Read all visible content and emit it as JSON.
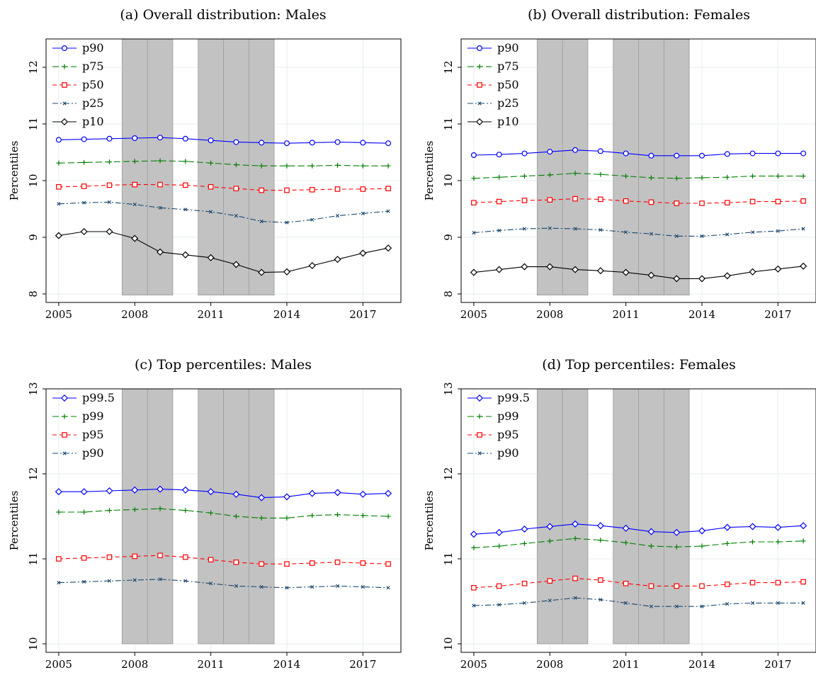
{
  "chart_data": [
    {
      "type": "line",
      "title": "(a) Overall distribution: Males",
      "ylabel": "Percentiles",
      "xlabel": "",
      "x": [
        2005,
        2006,
        2007,
        2008,
        2009,
        2010,
        2011,
        2012,
        2013,
        2014,
        2015,
        2016,
        2017,
        2018
      ],
      "xticks": [
        "2005",
        "2008",
        "2011",
        "2014",
        "2017"
      ],
      "yticks": [
        "8",
        "9",
        "10",
        "11",
        "12"
      ],
      "xlim": [
        2004.5,
        2018.5
      ],
      "ylim": [
        7.85,
        12.5
      ],
      "grid": true,
      "legend_position": "top-left",
      "shaded_periods": [
        [
          2007.5,
          2009.5
        ],
        [
          2010.5,
          2013.5
        ]
      ],
      "series": [
        {
          "name": "p90",
          "color": "#0000ff",
          "marker": "circle",
          "dash": "solid",
          "values": [
            10.72,
            10.73,
            10.74,
            10.75,
            10.76,
            10.74,
            10.71,
            10.68,
            10.67,
            10.66,
            10.67,
            10.68,
            10.67,
            10.66
          ]
        },
        {
          "name": "p75",
          "color": "#008000",
          "marker": "plus",
          "dash": "longdash",
          "values": [
            10.31,
            10.32,
            10.33,
            10.34,
            10.35,
            10.34,
            10.31,
            10.28,
            10.26,
            10.26,
            10.26,
            10.27,
            10.26,
            10.26
          ]
        },
        {
          "name": "p50",
          "color": "#ff0000",
          "marker": "square",
          "dash": "dash",
          "values": [
            9.89,
            9.9,
            9.92,
            9.93,
            9.93,
            9.92,
            9.89,
            9.86,
            9.83,
            9.83,
            9.84,
            9.85,
            9.85,
            9.86
          ]
        },
        {
          "name": "p25",
          "color": "#1a476f",
          "marker": "x",
          "dash": "dashdot",
          "values": [
            9.59,
            9.61,
            9.62,
            9.58,
            9.52,
            9.49,
            9.45,
            9.38,
            9.28,
            9.26,
            9.31,
            9.38,
            9.42,
            9.46
          ]
        },
        {
          "name": "p10",
          "color": "#000000",
          "marker": "diamond",
          "dash": "solid",
          "values": [
            9.03,
            9.1,
            9.1,
            8.98,
            8.74,
            8.69,
            8.64,
            8.52,
            8.38,
            8.39,
            8.5,
            8.61,
            8.72,
            8.81
          ]
        }
      ]
    },
    {
      "type": "line",
      "title": "(b) Overall distribution: Females",
      "ylabel": "Percentiles",
      "xlabel": "",
      "x": [
        2005,
        2006,
        2007,
        2008,
        2009,
        2010,
        2011,
        2012,
        2013,
        2014,
        2015,
        2016,
        2017,
        2018
      ],
      "xticks": [
        "2005",
        "2008",
        "2011",
        "2014",
        "2017"
      ],
      "yticks": [
        "8",
        "9",
        "10",
        "11",
        "12"
      ],
      "xlim": [
        2004.5,
        2018.5
      ],
      "ylim": [
        7.85,
        12.5
      ],
      "grid": true,
      "legend_position": "top-left",
      "shaded_periods": [
        [
          2007.5,
          2009.5
        ],
        [
          2010.5,
          2013.5
        ]
      ],
      "series": [
        {
          "name": "p90",
          "color": "#0000ff",
          "marker": "circle",
          "dash": "solid",
          "values": [
            10.45,
            10.46,
            10.48,
            10.51,
            10.54,
            10.52,
            10.48,
            10.44,
            10.44,
            10.44,
            10.47,
            10.48,
            10.48,
            10.48
          ]
        },
        {
          "name": "p75",
          "color": "#008000",
          "marker": "plus",
          "dash": "longdash",
          "values": [
            10.04,
            10.06,
            10.08,
            10.1,
            10.13,
            10.11,
            10.08,
            10.05,
            10.04,
            10.05,
            10.06,
            10.08,
            10.08,
            10.08
          ]
        },
        {
          "name": "p50",
          "color": "#ff0000",
          "marker": "square",
          "dash": "dash",
          "values": [
            9.61,
            9.63,
            9.65,
            9.66,
            9.68,
            9.67,
            9.64,
            9.62,
            9.6,
            9.6,
            9.61,
            9.63,
            9.63,
            9.64
          ]
        },
        {
          "name": "p25",
          "color": "#1a476f",
          "marker": "x",
          "dash": "dashdot",
          "values": [
            9.08,
            9.12,
            9.15,
            9.16,
            9.15,
            9.13,
            9.09,
            9.06,
            9.02,
            9.02,
            9.05,
            9.09,
            9.11,
            9.15
          ]
        },
        {
          "name": "p10",
          "color": "#000000",
          "marker": "diamond",
          "dash": "solid",
          "values": [
            8.38,
            8.43,
            8.48,
            8.48,
            8.43,
            8.41,
            8.38,
            8.33,
            8.27,
            8.27,
            8.32,
            8.39,
            8.44,
            8.49
          ]
        }
      ]
    },
    {
      "type": "line",
      "title": "(c) Top percentiles: Males",
      "ylabel": "Percentiles",
      "xlabel": "",
      "x": [
        2005,
        2006,
        2007,
        2008,
        2009,
        2010,
        2011,
        2012,
        2013,
        2014,
        2015,
        2016,
        2017,
        2018
      ],
      "xticks": [
        "2005",
        "2008",
        "2011",
        "2014",
        "2017"
      ],
      "yticks": [
        "10",
        "11",
        "12",
        "13"
      ],
      "xlim": [
        2004.5,
        2018.5
      ],
      "ylim": [
        9.9,
        13.0
      ],
      "grid": true,
      "legend_position": "top-left",
      "shaded_periods": [
        [
          2007.5,
          2009.5
        ],
        [
          2010.5,
          2013.5
        ]
      ],
      "series": [
        {
          "name": "p99.5",
          "color": "#0000ff",
          "marker": "diamond",
          "dash": "solid",
          "values": [
            11.79,
            11.79,
            11.8,
            11.81,
            11.82,
            11.81,
            11.79,
            11.76,
            11.72,
            11.73,
            11.77,
            11.78,
            11.76,
            11.77
          ]
        },
        {
          "name": "p99",
          "color": "#008000",
          "marker": "plus",
          "dash": "longdash",
          "values": [
            11.55,
            11.55,
            11.57,
            11.58,
            11.59,
            11.57,
            11.54,
            11.5,
            11.48,
            11.48,
            11.51,
            11.52,
            11.51,
            11.5
          ]
        },
        {
          "name": "p95",
          "color": "#ff0000",
          "marker": "square",
          "dash": "dash",
          "values": [
            11.0,
            11.01,
            11.02,
            11.03,
            11.04,
            11.02,
            10.99,
            10.96,
            10.94,
            10.94,
            10.95,
            10.96,
            10.95,
            10.94
          ]
        },
        {
          "name": "p90",
          "color": "#1a476f",
          "marker": "x",
          "dash": "dashdot",
          "values": [
            10.72,
            10.73,
            10.74,
            10.75,
            10.76,
            10.74,
            10.71,
            10.68,
            10.67,
            10.66,
            10.67,
            10.68,
            10.67,
            10.66
          ]
        }
      ]
    },
    {
      "type": "line",
      "title": "(d) Top percentiles: Females",
      "ylabel": "Percentiles",
      "xlabel": "",
      "x": [
        2005,
        2006,
        2007,
        2008,
        2009,
        2010,
        2011,
        2012,
        2013,
        2014,
        2015,
        2016,
        2017,
        2018
      ],
      "xticks": [
        "2005",
        "2008",
        "2011",
        "2014",
        "2017"
      ],
      "yticks": [
        "10",
        "11",
        "12",
        "13"
      ],
      "xlim": [
        2004.5,
        2018.5
      ],
      "ylim": [
        9.9,
        13.0
      ],
      "grid": true,
      "legend_position": "top-left",
      "shaded_periods": [
        [
          2007.5,
          2009.5
        ],
        [
          2010.5,
          2013.5
        ]
      ],
      "series": [
        {
          "name": "p99.5",
          "color": "#0000ff",
          "marker": "diamond",
          "dash": "solid",
          "values": [
            11.29,
            11.31,
            11.35,
            11.38,
            11.41,
            11.39,
            11.36,
            11.32,
            11.31,
            11.33,
            11.37,
            11.38,
            11.37,
            11.39
          ]
        },
        {
          "name": "p99",
          "color": "#008000",
          "marker": "plus",
          "dash": "longdash",
          "values": [
            11.13,
            11.15,
            11.18,
            11.21,
            11.24,
            11.22,
            11.19,
            11.15,
            11.14,
            11.15,
            11.18,
            11.2,
            11.2,
            11.21
          ]
        },
        {
          "name": "p95",
          "color": "#ff0000",
          "marker": "square",
          "dash": "dash",
          "values": [
            10.66,
            10.68,
            10.71,
            10.74,
            10.77,
            10.75,
            10.71,
            10.68,
            10.68,
            10.68,
            10.7,
            10.72,
            10.72,
            10.73
          ]
        },
        {
          "name": "p90",
          "color": "#1a476f",
          "marker": "x",
          "dash": "dashdot",
          "values": [
            10.45,
            10.46,
            10.48,
            10.51,
            10.54,
            10.52,
            10.48,
            10.44,
            10.44,
            10.44,
            10.47,
            10.48,
            10.48,
            10.48
          ]
        }
      ]
    }
  ]
}
